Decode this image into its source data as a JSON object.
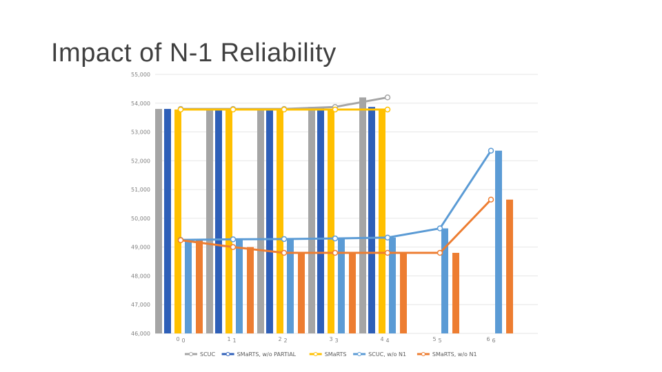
{
  "page": {
    "title": "Impact of N-1 Reliability"
  },
  "chart_data": {
    "type": "bar",
    "ylim": [
      46000,
      55000
    ],
    "yticks": [
      "55,000",
      "54,000",
      "53,000",
      "52,000",
      "51,000",
      "50,000",
      "49,000",
      "48,000",
      "47,000",
      "46,000"
    ],
    "x_labels": [
      "0",
      "1",
      "2",
      "3",
      "4",
      "5",
      "6"
    ],
    "x_labels_secondary": [
      "0",
      "1",
      "2",
      "3",
      "4",
      "5",
      "6"
    ],
    "series": [
      {
        "name": "SCUC",
        "color": "#a5a5a5",
        "kind": "bar",
        "values": [
          53800,
          53800,
          53800,
          53870,
          54200,
          null,
          null
        ]
      },
      {
        "name": "SMaRTS, w/o PARTIAL",
        "color": "#2e5fb8",
        "kind": "bar",
        "values": [
          53800,
          53800,
          53800,
          53870,
          53870,
          null,
          null
        ]
      },
      {
        "name": "SMaRTS",
        "color": "#ffc000",
        "kind": "bar",
        "values": [
          53780,
          53780,
          53780,
          53780,
          53780,
          null,
          null
        ]
      },
      {
        "name": "SCUC, w/o N1",
        "color": "#5b9bd5",
        "kind": "bar",
        "values": [
          49250,
          49270,
          49280,
          49300,
          49330,
          49650,
          52350
        ]
      },
      {
        "name": "SMaRTS, w/o N1",
        "color": "#ed7d31",
        "kind": "bar",
        "values": [
          49240,
          49000,
          48800,
          48800,
          48800,
          48800,
          50650
        ]
      }
    ],
    "legend": [
      "SCUC",
      "SMaRTS, w/o PARTIAL",
      "SMaRTS",
      "SCUC, w/o N1",
      "SMaRTS, w/o N1"
    ],
    "legend_position": "bottom"
  }
}
